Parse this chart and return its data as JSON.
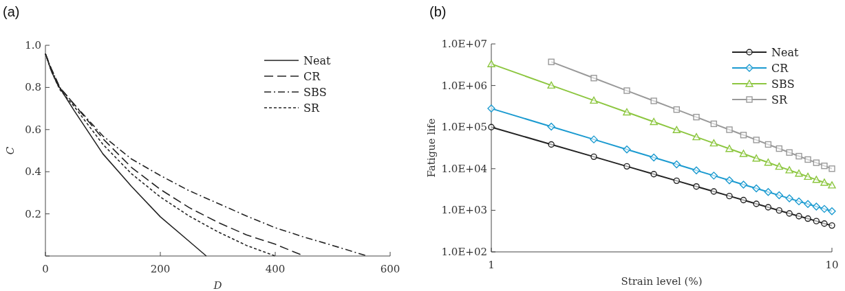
{
  "chart_data": [
    {
      "type": "line",
      "annotations": [
        "(a)"
      ],
      "xlabel": "D",
      "ylabel": "C",
      "xlim": [
        0,
        600
      ],
      "xticks": [
        0,
        200,
        400,
        600
      ],
      "ylim": [
        0,
        1
      ],
      "yticks": [
        {
          "value": 0,
          "label": null
        },
        0.2,
        0.4,
        0.6,
        0.8,
        {
          "value": 1,
          "label": "1.0"
        }
      ],
      "legend": "top right",
      "grid": false,
      "marker": "none",
      "series": [
        {
          "name": "Neat",
          "color": "#222222",
          "line_style": "solid",
          "x": [
            0,
            10,
            20,
            50,
            100,
            150,
            200,
            250,
            280
          ],
          "values": [
            0.96,
            0.88,
            0.82,
            0.69,
            0.485,
            0.33,
            0.186,
            0.07,
            0
          ]
        },
        {
          "name": "CR",
          "color": "#222222",
          "line_style": "dashed",
          "x": [
            0,
            10,
            25,
            50,
            100,
            150,
            200,
            250,
            300,
            350,
            400,
            450
          ],
          "values": [
            0.96,
            0.89,
            0.8,
            0.72,
            0.557,
            0.42,
            0.316,
            0.23,
            0.16,
            0.1,
            0.056,
            0
          ]
        },
        {
          "name": "SBS",
          "color": "#222222",
          "line_style": "dashdot",
          "x": [
            0,
            10,
            25,
            50,
            100,
            150,
            200,
            250,
            300,
            350,
            400,
            450,
            500,
            560
          ],
          "values": [
            0.96,
            0.89,
            0.8,
            0.72,
            0.57,
            0.46,
            0.382,
            0.31,
            0.25,
            0.19,
            0.134,
            0.09,
            0.05,
            0
          ]
        },
        {
          "name": "SR",
          "color": "#222222",
          "line_style": "dotted",
          "x": [
            0,
            10,
            25,
            50,
            100,
            150,
            200,
            250,
            300,
            350,
            400
          ],
          "values": [
            0.96,
            0.88,
            0.79,
            0.71,
            0.53,
            0.39,
            0.28,
            0.19,
            0.115,
            0.05,
            0
          ]
        }
      ]
    },
    {
      "type": "line",
      "annotations": [
        "(b)"
      ],
      "xlabel": "Strain level (%)",
      "ylabel": "Fatigue life",
      "log": "xy",
      "xlim": [
        1,
        10
      ],
      "xticks": [
        1,
        10
      ],
      "ylim": [
        100,
        10000000
      ],
      "yticks": [
        {
          "value": 100,
          "label": "1.0E+02"
        },
        {
          "value": 1000,
          "label": "1.0E+03"
        },
        {
          "value": 10000,
          "label": "1.0E+04"
        },
        {
          "value": 100000,
          "label": "1.0E+05"
        },
        {
          "value": 1000000,
          "label": "1.0E+06"
        },
        {
          "value": 10000000,
          "label": "1.0E+07"
        }
      ],
      "legend": "top right",
      "grid": false,
      "x": [
        1,
        1.5,
        2,
        2.5,
        3,
        3.5,
        4,
        4.5,
        5,
        5.5,
        6,
        6.5,
        7,
        7.5,
        8,
        8.5,
        9,
        9.5,
        10
      ],
      "series": [
        {
          "name": "Neat",
          "color": "#222222",
          "marker": "circle",
          "values": [
            100000,
            38300,
            19400,
            11400,
            7400,
            5130,
            3740,
            2830,
            2200,
            1760,
            1430,
            1180,
            990,
            840,
            720,
            630,
            550,
            480,
            430
          ]
        },
        {
          "name": "CR",
          "color": "#1a9ad0",
          "marker": "diamond",
          "values": [
            280000,
            103000,
            50600,
            29100,
            18600,
            12700,
            9120,
            6820,
            5250,
            4150,
            3350,
            2750,
            2290,
            1930,
            1640,
            1420,
            1230,
            1080,
            950
          ]
        },
        {
          "name": "SBS",
          "color": "#8cc63f",
          "marker": "triangle",
          "values": [
            3300000,
            1010000,
            438000,
            228000,
            134000,
            85500,
            57900,
            41100,
            30200,
            22900,
            17700,
            14100,
            11300,
            9250,
            7670,
            6430,
            5440,
            4650,
            4000
          ]
        },
        {
          "name": "SR",
          "color": "#999999",
          "marker": "square",
          "values": [
            null,
            3700000,
            1510000,
            753000,
            427000,
            264000,
            174000,
            120000,
            86700,
            64400,
            49100,
            38300,
            30400,
            24500,
            20000,
            16600,
            13900,
            11700,
            10000
          ]
        }
      ]
    }
  ]
}
